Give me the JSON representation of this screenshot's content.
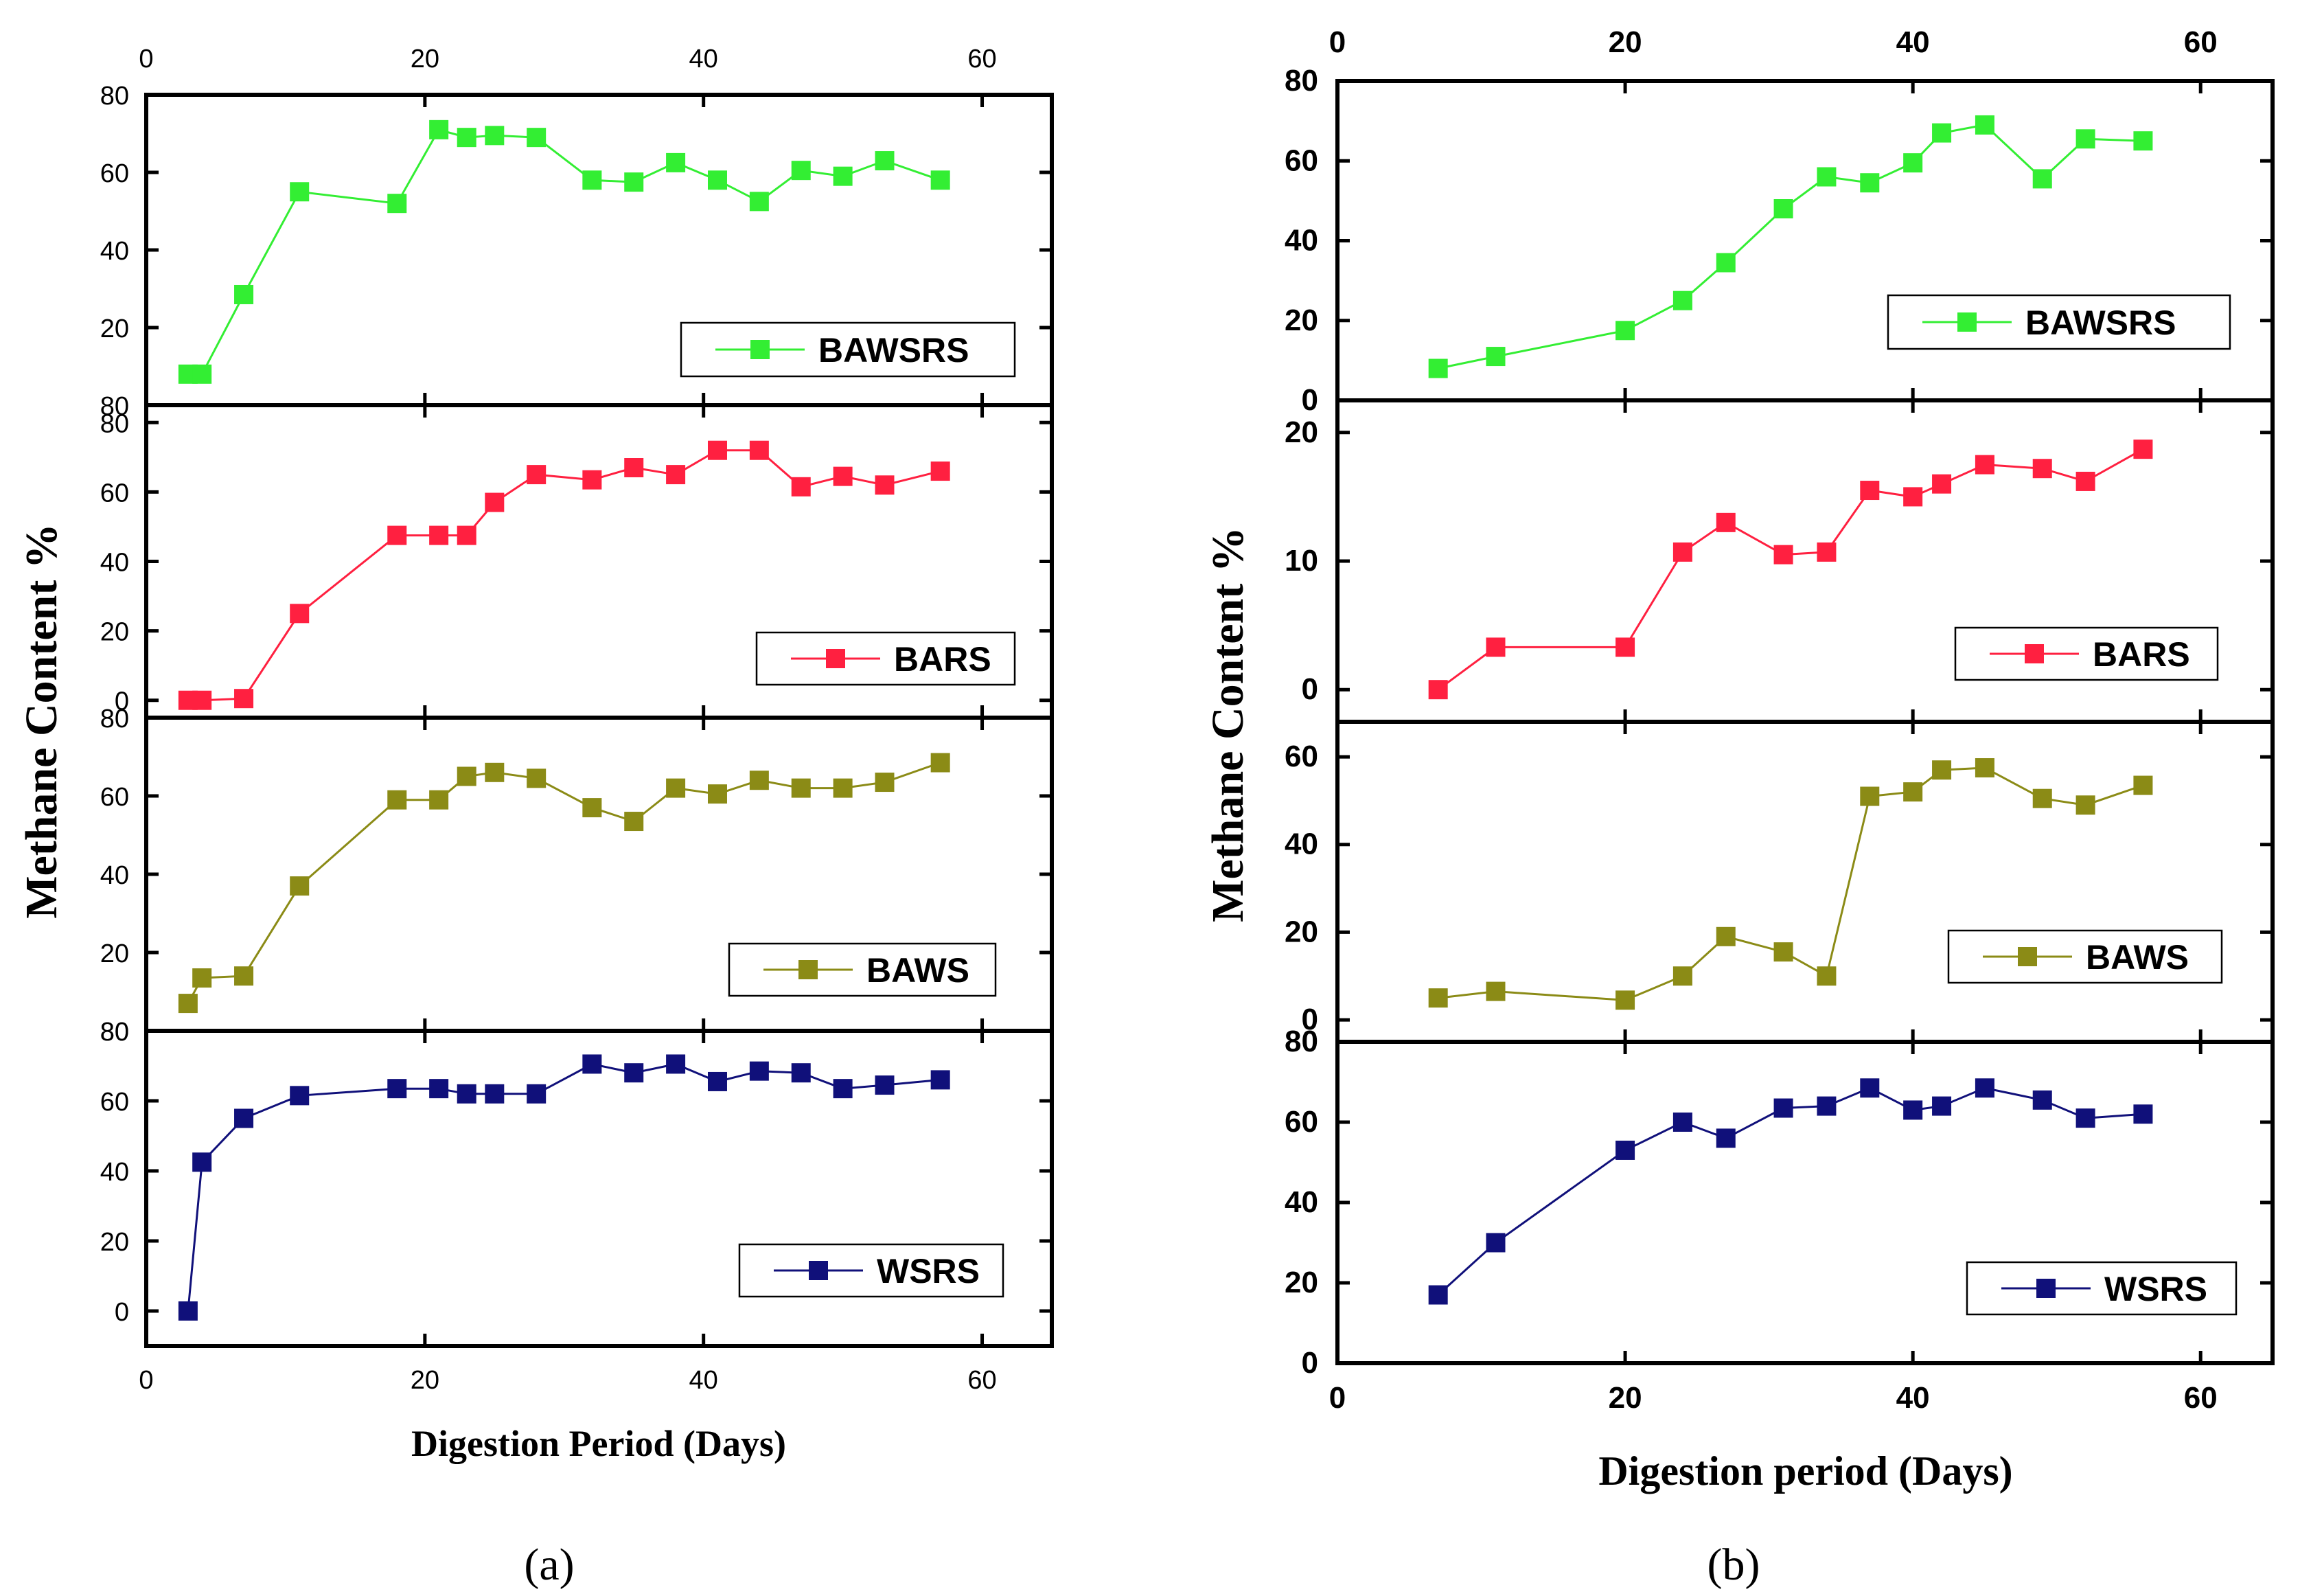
{
  "chart_data": [
    {
      "type": "line",
      "panel_label": "(a)",
      "ylabel": "Methane Content %",
      "xlabel": "Digestion Period (Days)",
      "xlim": [
        0,
        65
      ],
      "xticks": [
        0,
        20,
        40,
        60
      ],
      "series": [
        {
          "name": "BAWSRS",
          "color": "#33ee33",
          "ylim": [
            0,
            80
          ],
          "yticks": [
            20,
            40,
            60,
            80
          ],
          "ytick_labels": [
            "20",
            "40",
            "60",
            "80"
          ],
          "bottom_label": "80",
          "x": [
            3,
            4,
            7,
            11,
            18,
            21,
            23,
            25,
            28,
            32,
            35,
            38,
            41,
            44,
            47,
            50,
            53,
            57
          ],
          "values": [
            8,
            8,
            28.5,
            55,
            52,
            71,
            69,
            69.5,
            69,
            58,
            57.5,
            62.5,
            58,
            52.5,
            60.5,
            59,
            63,
            58
          ]
        },
        {
          "name": "BARS",
          "color": "#ff2040",
          "ylim": [
            -5,
            85
          ],
          "yticks": [
            0,
            20,
            40,
            60,
            80
          ],
          "ytick_labels": [
            "0",
            "20",
            "40",
            "60",
            "80"
          ],
          "x": [
            3,
            4,
            7,
            11,
            18,
            21,
            23,
            25,
            28,
            32,
            35,
            38,
            41,
            44,
            47,
            50,
            53,
            57
          ],
          "values": [
            0,
            0,
            0.5,
            25,
            47.5,
            47.5,
            47.5,
            57,
            65,
            63.5,
            67,
            65,
            72,
            72,
            61.5,
            64.5,
            62,
            66
          ]
        },
        {
          "name": "BAWS",
          "color": "#8b8b16",
          "ylim": [
            0,
            80
          ],
          "yticks": [
            20,
            40,
            60,
            80
          ],
          "ytick_labels": [
            "20",
            "40",
            "60",
            "80"
          ],
          "bottom_label": "80",
          "x": [
            3,
            4,
            7,
            11,
            18,
            21,
            23,
            25,
            28,
            32,
            35,
            38,
            41,
            44,
            47,
            50,
            53,
            57
          ],
          "values": [
            7,
            13.5,
            14,
            37,
            59,
            59,
            65,
            66,
            64.5,
            57,
            53.5,
            62,
            60.5,
            64,
            62,
            62,
            63.5,
            68.5
          ]
        },
        {
          "name": "WSRS",
          "color": "#10107a",
          "ylim": [
            -10,
            80
          ],
          "yticks": [
            0,
            20,
            40,
            60,
            80
          ],
          "ytick_labels": [
            "0",
            "20",
            "40",
            "60",
            "80"
          ],
          "x": [
            3,
            4,
            7,
            11,
            18,
            21,
            23,
            25,
            28,
            32,
            35,
            38,
            41,
            44,
            47,
            50,
            53,
            57
          ],
          "values": [
            0,
            42.5,
            55,
            61.5,
            63.5,
            63.5,
            62,
            62,
            62,
            70.5,
            68,
            70.5,
            65.5,
            68.5,
            68,
            63.5,
            64.5,
            66
          ]
        }
      ]
    },
    {
      "type": "line",
      "panel_label": "(b)",
      "ylabel": "Methane Content %",
      "xlabel": "Digestion period (Days)",
      "xlim": [
        0,
        65
      ],
      "xticks": [
        0,
        20,
        40,
        60
      ],
      "series": [
        {
          "name": "BAWSRS",
          "color": "#33ee33",
          "ylim": [
            0,
            80
          ],
          "yticks": [
            0,
            20,
            40,
            60,
            80
          ],
          "ytick_labels": [
            "0",
            "20",
            "40",
            "60",
            "80"
          ],
          "x": [
            7,
            11,
            20,
            24,
            27,
            31,
            34,
            37,
            40,
            42,
            45,
            49,
            52,
            56
          ],
          "values": [
            8,
            11,
            17.5,
            25,
            34.5,
            48,
            56,
            54.5,
            59.5,
            67,
            69,
            55.5,
            65.5,
            65
          ]
        },
        {
          "name": "BARS",
          "color": "#ff2040",
          "ylim": [
            -2.5,
            22.5
          ],
          "yticks": [
            0,
            10,
            20
          ],
          "ytick_labels": [
            "0",
            "10",
            "20"
          ],
          "x": [
            7,
            11,
            20,
            24,
            27,
            31,
            34,
            37,
            40,
            42,
            45,
            49,
            52,
            56
          ],
          "values": [
            0,
            3.3,
            3.3,
            10.7,
            13,
            10.5,
            10.7,
            15.5,
            15,
            16,
            17.5,
            17.2,
            16.2,
            18.7
          ]
        },
        {
          "name": "BAWS",
          "color": "#8b8b16",
          "ylim": [
            -5,
            68
          ],
          "yticks": [
            0,
            20,
            40,
            60
          ],
          "ytick_labels": [
            "0",
            "20",
            "40",
            "60"
          ],
          "x": [
            7,
            11,
            20,
            24,
            27,
            31,
            34,
            37,
            40,
            42,
            45,
            49,
            52,
            56
          ],
          "values": [
            5,
            6.5,
            4.5,
            10,
            19,
            15.5,
            10,
            51,
            52,
            57,
            57.5,
            50.5,
            49,
            53.5
          ]
        },
        {
          "name": "WSRS",
          "color": "#10107a",
          "ylim": [
            0,
            80
          ],
          "yticks": [
            0,
            20,
            40,
            60,
            80
          ],
          "ytick_labels": [
            "0",
            "20",
            "40",
            "60",
            "80"
          ],
          "x": [
            7,
            11,
            20,
            24,
            27,
            31,
            34,
            37,
            40,
            42,
            45,
            49,
            52,
            56
          ],
          "values": [
            17,
            30,
            53,
            60,
            56,
            63.5,
            64,
            68.5,
            63,
            64,
            68.5,
            65.5,
            61,
            62
          ]
        }
      ]
    }
  ]
}
